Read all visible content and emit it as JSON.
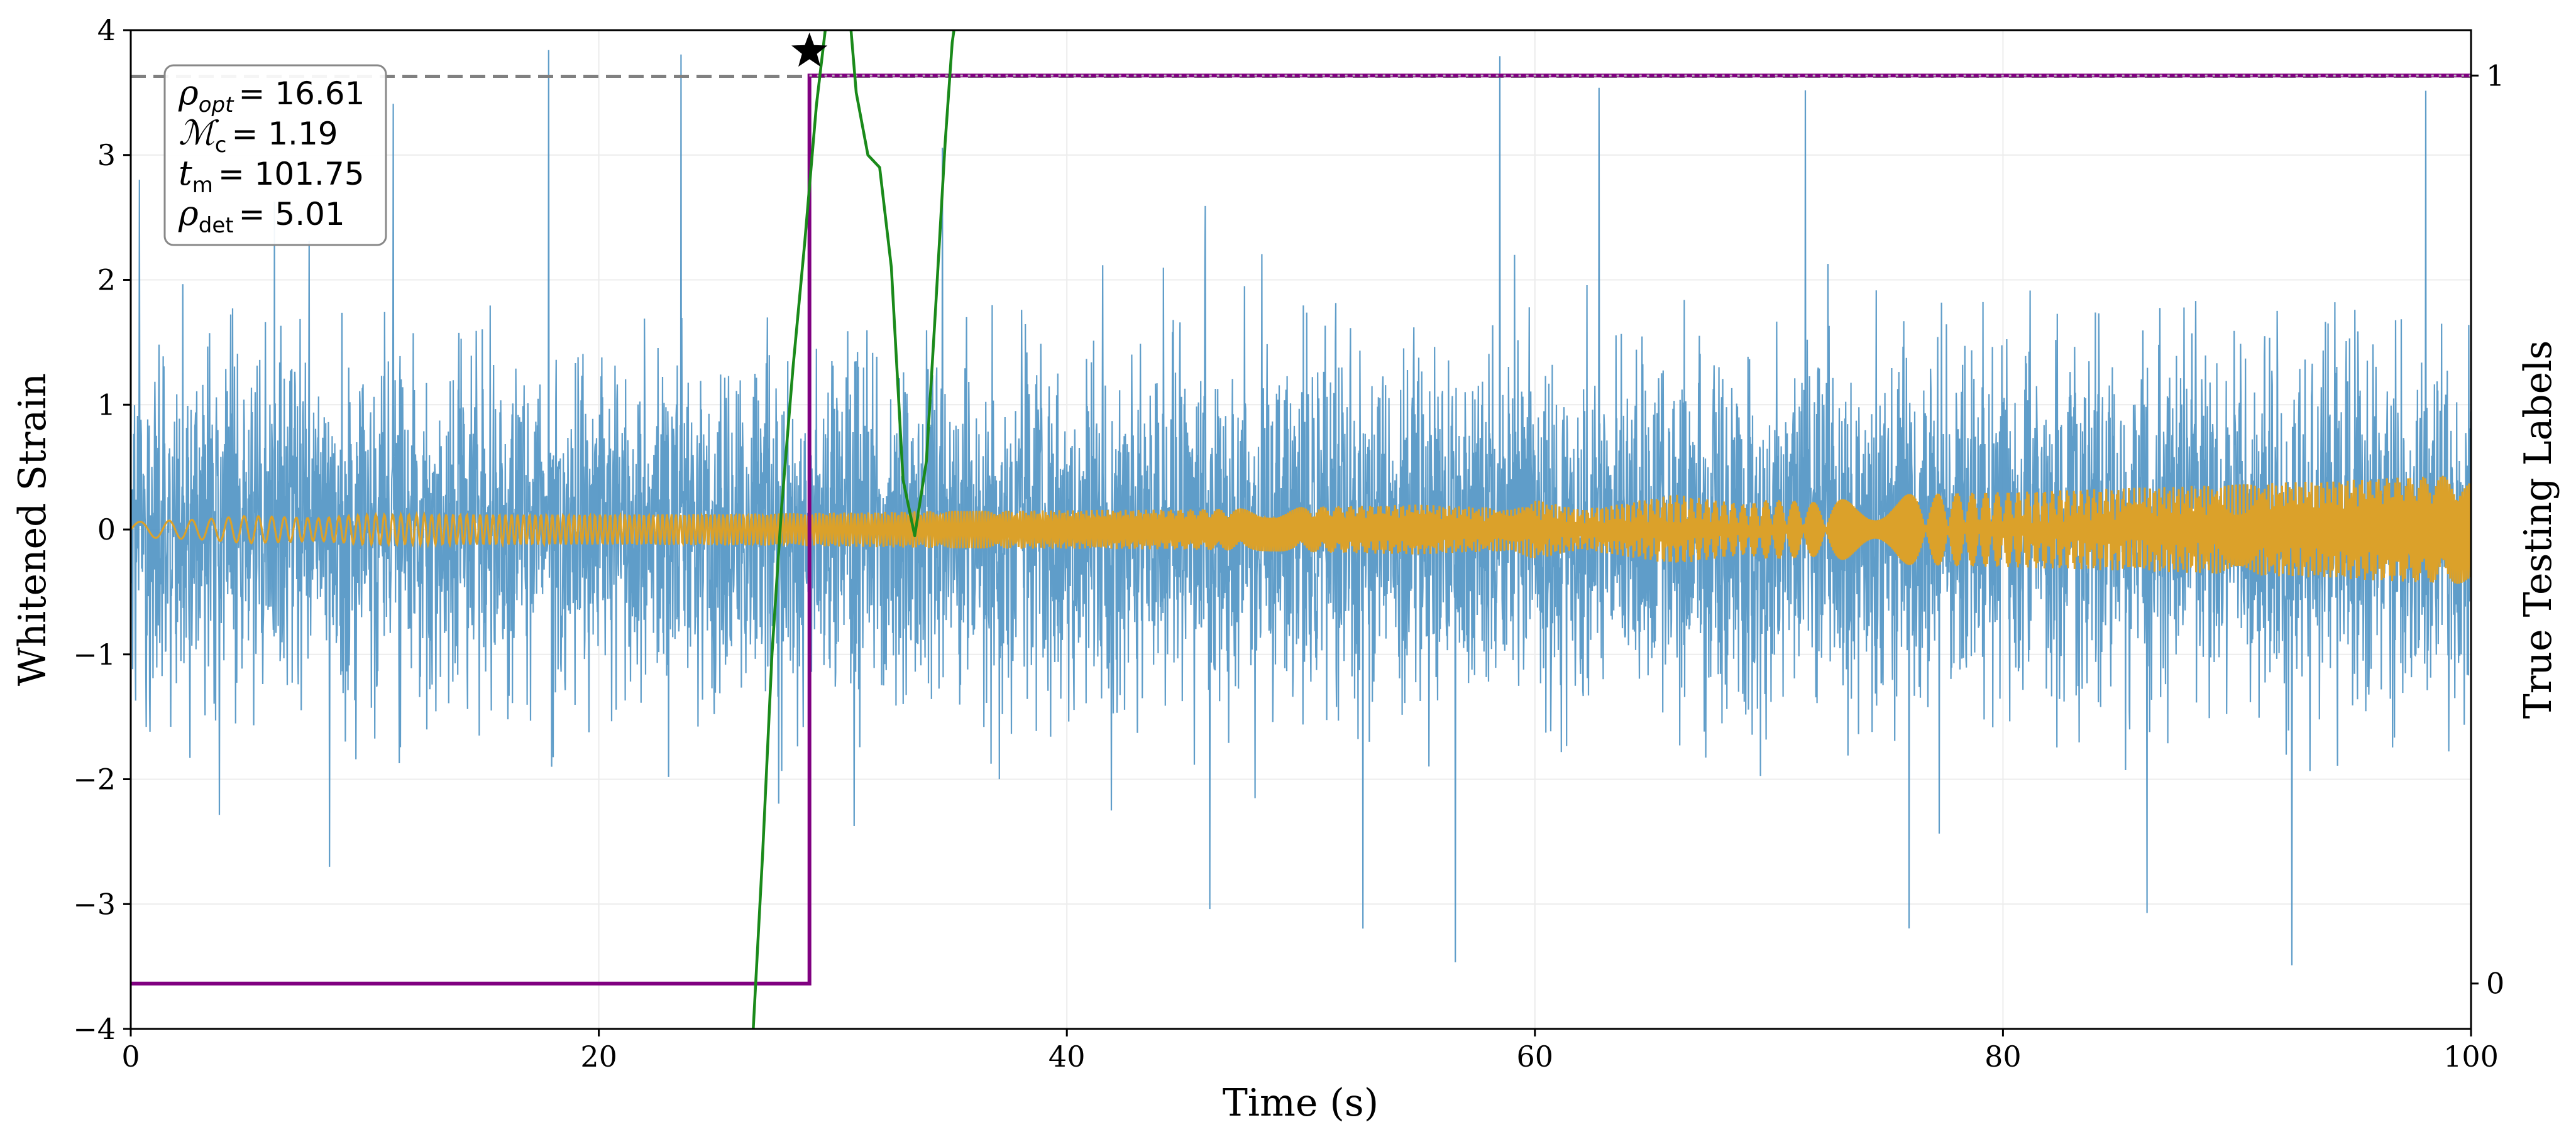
{
  "chart_data": {
    "type": "line",
    "x_axis": {
      "label": "Time (s)",
      "range": [
        0,
        100
      ],
      "ticks": [
        0,
        20,
        40,
        60,
        80,
        100
      ],
      "tick_labels": [
        "0",
        "20",
        "40",
        "60",
        "80",
        "100"
      ]
    },
    "y_axis_left": {
      "label": "Whitened Strain",
      "range": [
        -4,
        4
      ],
      "ticks": [
        -4,
        -3,
        -2,
        -1,
        0,
        1,
        2,
        3,
        4
      ],
      "tick_labels": [
        "−4",
        "−3",
        "−2",
        "−1",
        "0",
        "1",
        "2",
        "3",
        "4"
      ]
    },
    "y_axis_right": {
      "label": "True Testing Labels",
      "range": [
        -0.05,
        1.05
      ],
      "ticks": [
        0,
        1
      ],
      "tick_labels": [
        "0",
        "1"
      ]
    },
    "grid": true,
    "series": [
      {
        "name": "whitened-strain",
        "axis": "left",
        "color": "#5698c6",
        "style": "noise",
        "x_range": [
          0,
          100
        ],
        "envelope_typical": 1.3,
        "envelope_peak": 3.7
      },
      {
        "name": "gw-signal",
        "axis": "left",
        "color": "#dba12a",
        "style": "chirp",
        "x": [
          0,
          3,
          5,
          8,
          10,
          20,
          28,
          35,
          45,
          55,
          59,
          60,
          62,
          64,
          66,
          69,
          70,
          72,
          75,
          80,
          85,
          90,
          95,
          100
        ],
        "amplitude": [
          0.06,
          0.08,
          0.11,
          0.09,
          0.12,
          0.12,
          0.13,
          0.15,
          0.16,
          0.2,
          0.17,
          0.24,
          0.16,
          0.22,
          0.28,
          0.2,
          0.24,
          0.22,
          0.28,
          0.3,
          0.33,
          0.36,
          0.4,
          0.44
        ]
      },
      {
        "name": "true-label",
        "axis": "right",
        "color": "#800080",
        "style": "step",
        "x": [
          0,
          29.0,
          29.0,
          100
        ],
        "y": [
          0,
          0,
          1,
          1
        ]
      },
      {
        "name": "green-curve",
        "axis": "left",
        "color": "#1a8a1a",
        "style": "line",
        "x": [
          26.6,
          27.0,
          27.4,
          27.8,
          28.3,
          28.8,
          29.3,
          29.8,
          30.2,
          30.6,
          31.0,
          31.5,
          32.0,
          32.5,
          33.0,
          33.5,
          34.0,
          34.4,
          34.8,
          35.1,
          35.4
        ],
        "y": [
          -4.0,
          -2.6,
          -1.0,
          0.15,
          1.3,
          2.3,
          3.4,
          4.2,
          4.9,
          4.4,
          3.5,
          3.0,
          2.9,
          2.1,
          0.4,
          -0.05,
          0.55,
          1.8,
          3.1,
          3.9,
          4.3
        ]
      },
      {
        "name": "threshold",
        "axis": "left",
        "color": "#808080",
        "style": "dashed",
        "y": 3.63
      },
      {
        "name": "label-one-level",
        "axis": "right",
        "color": "#bfbfbf",
        "style": "dotted",
        "x": [
          29.0,
          100
        ],
        "y": [
          1,
          1
        ]
      }
    ],
    "marker": {
      "shape": "star",
      "x": 29.0,
      "y": 3.83,
      "color": "#000000"
    },
    "annotation": {
      "position": "top-left",
      "lines": [
        {
          "symbol": "ρ",
          "subscript": "opt",
          "value": "= 16.61"
        },
        {
          "symbol": "ℳ",
          "subscript": "c",
          "value": "= 1.19"
        },
        {
          "symbol": "t",
          "subscript": "m",
          "value": "= 101.75"
        },
        {
          "symbol": "ρ",
          "subscript": "det",
          "value": "= 5.01"
        }
      ]
    }
  }
}
